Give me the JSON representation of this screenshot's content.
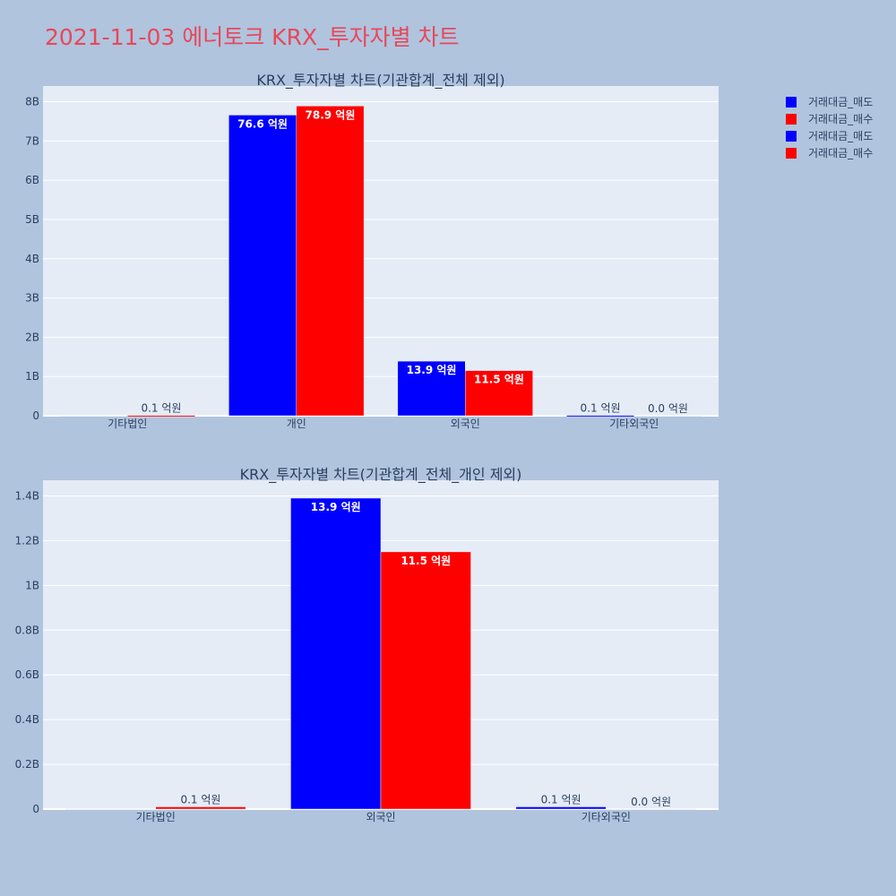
{
  "title": "2021-11-03 에너토크 KRX_투자자별 차트",
  "colors": {
    "page_bg": "#b0c4de",
    "plot_bg": "#e5ecf6",
    "title": "#e8475a",
    "sell": "#0000ff",
    "buy": "#ff0000"
  },
  "legend": [
    {
      "name": "거래대금_매도",
      "color": "#0000ff"
    },
    {
      "name": "거래대금_매수",
      "color": "#ff0000"
    },
    {
      "name": "거래대금_매도",
      "color": "#0000ff"
    },
    {
      "name": "거래대금_매수",
      "color": "#ff0000"
    }
  ],
  "chart_data": [
    {
      "type": "bar",
      "title": "KRX_투자자별 차트(기관합계_전체 제외)",
      "categories": [
        "기타법인",
        "개인",
        "외국인",
        "기타외국인"
      ],
      "series": [
        {
          "name": "거래대금_매도",
          "color": "#0000ff",
          "values": [
            0,
            7660000000,
            1390000000,
            10000000
          ],
          "labels": [
            "",
            "76.6 억원",
            "13.9 억원",
            "0.1 억원"
          ]
        },
        {
          "name": "거래대금_매수",
          "color": "#ff0000",
          "values": [
            10000000,
            7890000000,
            1150000000,
            0
          ],
          "labels": [
            "0.1 억원",
            "78.9 억원",
            "11.5 억원",
            "0.0 억원"
          ]
        }
      ],
      "ylim": [
        0,
        8400000000
      ],
      "yticks": [
        0,
        1000000000,
        2000000000,
        3000000000,
        4000000000,
        5000000000,
        6000000000,
        7000000000,
        8000000000
      ],
      "ytick_labels": [
        "0",
        "1B",
        "2B",
        "3B",
        "4B",
        "5B",
        "6B",
        "7B",
        "8B"
      ],
      "grid": true
    },
    {
      "type": "bar",
      "title": "KRX_투자자별 차트(기관합계_전체_개인 제외)",
      "categories": [
        "기타법인",
        "외국인",
        "기타외국인"
      ],
      "series": [
        {
          "name": "거래대금_매도",
          "color": "#0000ff",
          "values": [
            0,
            1390000000,
            10000000
          ],
          "labels": [
            "",
            "13.9 억원",
            "0.1 억원"
          ]
        },
        {
          "name": "거래대금_매수",
          "color": "#ff0000",
          "values": [
            10000000,
            1150000000,
            0
          ],
          "labels": [
            "0.1 억원",
            "11.5 억원",
            "0.0 억원"
          ]
        }
      ],
      "ylim": [
        0,
        1470000000
      ],
      "yticks": [
        0,
        200000000,
        400000000,
        600000000,
        800000000,
        1000000000,
        1200000000,
        1400000000
      ],
      "ytick_labels": [
        "0",
        "0.2B",
        "0.4B",
        "0.6B",
        "0.8B",
        "1B",
        "1.2B",
        "1.4B"
      ],
      "grid": true
    }
  ]
}
